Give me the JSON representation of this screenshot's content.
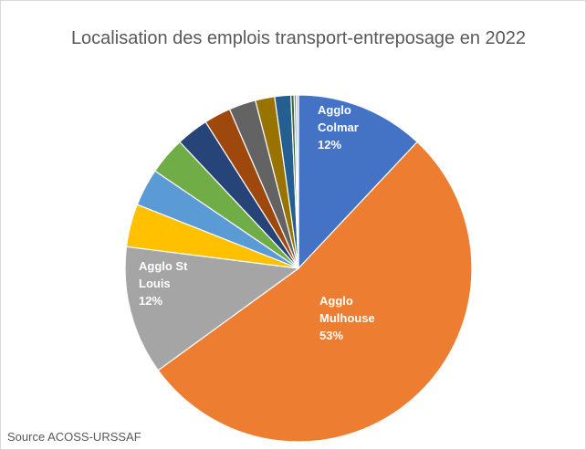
{
  "chart_data": {
    "type": "pie",
    "title": "Localisation des emplois transport-entreposage en 2022",
    "source": "Source ACOSS-URSSAF",
    "categories": [
      "Agglo Colmar",
      "Agglo Mulhouse",
      "Agglo St Louis",
      null,
      null,
      null,
      null,
      null,
      null,
      null,
      null,
      null,
      null,
      null
    ],
    "values": [
      12,
      53,
      12,
      4,
      3.5,
      3.5,
      3,
      2.5,
      2.5,
      1.8,
      1.5,
      0.3,
      0.2,
      0.2
    ],
    "value_labels": [
      "12%",
      "53%",
      "12%",
      null,
      null,
      null,
      null,
      null,
      null,
      null,
      null,
      null,
      null,
      null
    ],
    "colors": [
      "#4472c4",
      "#ed7d31",
      "#a5a5a5",
      "#ffc000",
      "#5b9bd5",
      "#70ad47",
      "#264478",
      "#9e480e",
      "#636363",
      "#997300",
      "#255e91",
      "#43682b",
      "#698ed0",
      "#b7b7b7"
    ]
  }
}
